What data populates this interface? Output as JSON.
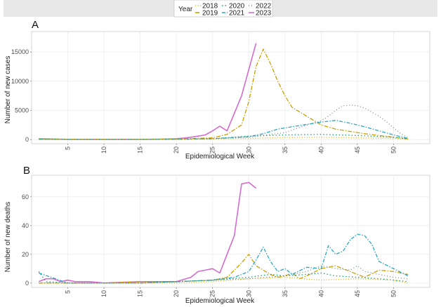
{
  "chart_data": {
    "legend": {
      "title": "Year",
      "placement": "top",
      "entries": [
        {
          "year": "2018",
          "color": "#e6a800",
          "dash": "1,2.5"
        },
        {
          "year": "2019",
          "color": "#c9a000",
          "dash": "6,2,1.5,2"
        },
        {
          "year": "2020",
          "color": "#1e9c78",
          "dash": "1.5,3"
        },
        {
          "year": "2021",
          "color": "#2aa5c4",
          "dash": "5,2,1.5,2"
        },
        {
          "year": "2022",
          "color": "#7a8a8a",
          "dash": "1,3"
        },
        {
          "year": "2023",
          "color": "#d46bd1",
          "dash": ""
        }
      ]
    },
    "panels": [
      {
        "letter": "A",
        "type": "line",
        "ylabel": "Number of new cases",
        "xlabel": "Epidemiological Week",
        "xlim": [
          0,
          55
        ],
        "ylim": [
          -700,
          18500
        ],
        "xticks": [
          5,
          10,
          15,
          20,
          25,
          30,
          35,
          40,
          45,
          50
        ],
        "yticks": [
          0,
          5000,
          10000,
          15000
        ],
        "grid": true,
        "series": [
          {
            "name": "2023",
            "x": [
              1,
              5,
              10,
              15,
              18,
              20,
              21,
              22,
              23,
              24,
              25,
              26,
              27,
              28,
              29,
              30,
              31
            ],
            "y": [
              150,
              50,
              50,
              50,
              80,
              150,
              250,
              400,
              600,
              800,
              1500,
              2300,
              1500,
              4500,
              7500,
              12000,
              16500
            ]
          },
          {
            "name": "2019",
            "x": [
              1,
              5,
              10,
              15,
              20,
              25,
              27,
              29,
              30,
              31,
              32,
              33,
              34,
              35,
              36,
              38,
              40,
              42,
              44,
              46,
              48,
              50,
              52
            ],
            "y": [
              100,
              50,
              50,
              50,
              100,
              300,
              900,
              2500,
              6500,
              12500,
              15500,
              13000,
              10000,
              7500,
              5500,
              4000,
              2500,
              1800,
              1400,
              1000,
              700,
              400,
              100
            ]
          },
          {
            "name": "2021",
            "x": [
              1,
              5,
              10,
              15,
              20,
              25,
              30,
              32,
              34,
              36,
              38,
              40,
              42,
              44,
              46,
              48,
              50,
              52
            ],
            "y": [
              50,
              30,
              30,
              30,
              50,
              150,
              500,
              1000,
              1800,
              2200,
              2600,
              3000,
              3300,
              2800,
              2200,
              1500,
              800,
              200
            ]
          },
          {
            "name": "2022",
            "x": [
              1,
              5,
              10,
              15,
              20,
              25,
              30,
              35,
              38,
              40,
              41,
              42,
              43,
              44,
              45,
              46,
              47,
              48,
              49,
              50,
              51,
              52
            ],
            "y": [
              50,
              30,
              30,
              30,
              60,
              150,
              400,
              1200,
              2500,
              3200,
              4000,
              5000,
              5800,
              5900,
              5800,
              5400,
              4700,
              4000,
              3100,
              2000,
              1000,
              300
            ]
          },
          {
            "name": "2020",
            "x": [
              1,
              5,
              10,
              15,
              20,
              25,
              30,
              35,
              40,
              45,
              50,
              52
            ],
            "y": [
              50,
              30,
              30,
              30,
              60,
              150,
              600,
              800,
              900,
              700,
              400,
              100
            ]
          },
          {
            "name": "2018",
            "x": [
              1,
              5,
              10,
              15,
              20,
              25,
              30,
              35,
              40,
              45,
              50,
              52
            ],
            "y": [
              50,
              20,
              20,
              20,
              40,
              100,
              200,
              350,
              400,
              300,
              200,
              50
            ]
          }
        ]
      },
      {
        "letter": "B",
        "type": "line",
        "ylabel": "Number of new deaths",
        "xlabel": "Epidemiological Week",
        "xlim": [
          0,
          55
        ],
        "ylim": [
          -3,
          75
        ],
        "xticks": [
          5,
          10,
          15,
          20,
          25,
          30,
          35,
          40,
          45,
          50
        ],
        "yticks": [
          0,
          20,
          40,
          60
        ],
        "grid": true,
        "series": [
          {
            "name": "2023",
            "x": [
              1,
              2,
              3,
              4,
              5,
              6,
              7,
              8,
              10,
              15,
              20,
              22,
              23,
              24,
              25,
              26,
              27,
              28,
              29,
              30,
              31
            ],
            "y": [
              1,
              3,
              3,
              1,
              2,
              1,
              1,
              1,
              0,
              1,
              1,
              4,
              8,
              9,
              10,
              7,
              20,
              33,
              69,
              70,
              66
            ]
          },
          {
            "name": "2019",
            "x": [
              1,
              5,
              10,
              15,
              20,
              25,
              27,
              28,
              29,
              30,
              31,
              32,
              33,
              34,
              35,
              36,
              37,
              38,
              40,
              42,
              44,
              46,
              48,
              50,
              52
            ],
            "y": [
              0,
              0,
              0,
              1,
              1,
              2,
              4,
              9,
              14,
              20,
              12,
              9,
              6,
              4,
              5,
              7,
              3,
              5,
              10,
              12,
              8,
              4,
              9,
              8,
              6
            ]
          },
          {
            "name": "2021",
            "x": [
              1,
              5,
              10,
              15,
              20,
              25,
              28,
              30,
              31,
              32,
              33,
              34,
              35,
              36,
              38,
              40,
              41,
              42,
              43,
              44,
              45,
              46,
              47,
              48,
              50,
              52
            ],
            "y": [
              7,
              0,
              0,
              0,
              1,
              2,
              4,
              8,
              16,
              25,
              15,
              8,
              10,
              6,
              11,
              10,
              26,
              20,
              22,
              30,
              34,
              33,
              27,
              15,
              10,
              5
            ]
          },
          {
            "name": "2022",
            "x": [
              1,
              5,
              10,
              15,
              20,
              25,
              30,
              35,
              38,
              40,
              42,
              44,
              45,
              46,
              48,
              50,
              52
            ],
            "y": [
              0,
              0,
              0,
              0,
              1,
              2,
              3,
              5,
              8,
              12,
              10,
              9,
              12,
              8,
              6,
              4,
              3
            ]
          },
          {
            "name": "2020",
            "x": [
              1,
              2,
              5,
              10,
              15,
              20,
              25,
              30,
              33,
              35,
              38,
              40,
              42,
              45,
              48,
              50,
              52
            ],
            "y": [
              8,
              1,
              0,
              0,
              0,
              1,
              2,
              4,
              6,
              5,
              6,
              7,
              5,
              4,
              3,
              2,
              1
            ]
          },
          {
            "name": "2018",
            "x": [
              1,
              5,
              10,
              15,
              20,
              25,
              30,
              35,
              40,
              45,
              50,
              52
            ],
            "y": [
              0,
              0,
              0,
              0,
              0,
              1,
              3,
              4,
              2,
              3,
              2,
              0
            ]
          }
        ]
      }
    ]
  }
}
